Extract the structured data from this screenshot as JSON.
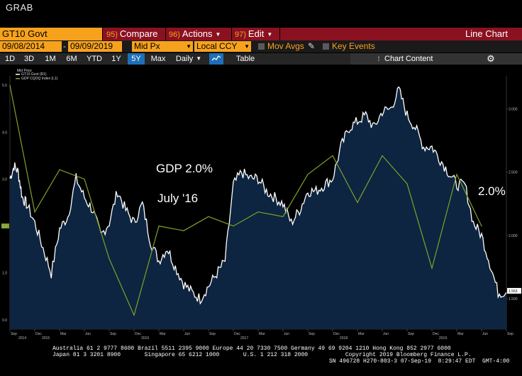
{
  "window": {
    "title": "GRAB"
  },
  "toolbar": {
    "ticker": "GT10 Govt",
    "compare": {
      "num": "95)",
      "label": "Compare"
    },
    "actions": {
      "num": "96)",
      "label": "Actions"
    },
    "edit": {
      "num": "97)",
      "label": "Edit"
    },
    "view_title": "Line Chart"
  },
  "options": {
    "start_date": "09/08/2014",
    "range_sep": "-",
    "end_date": "09/09/2019",
    "price_field": "Mid Px",
    "currency": "Local CCY",
    "mov_avgs": "Mov Avgs",
    "key_events": "Key Events"
  },
  "periods": [
    "1D",
    "3D",
    "1M",
    "6M",
    "YTD",
    "1Y",
    "5Y",
    "Max"
  ],
  "active_period": "5Y",
  "frequency": "Daily",
  "table_label": "Table",
  "chart_content_label": "Chart Content",
  "colors": {
    "orange": "#f7a21d",
    "bar_red": "#8a1120",
    "active_blue": "#1e6fb8",
    "area_fill": "#0d2540",
    "gdp_line": "#7fa12a",
    "yield_line": "#ffffff"
  },
  "chart_data": {
    "type": "area",
    "legend": {
      "header": "Mid Price",
      "items": [
        "GT10 Govt (R1)",
        "GDP CQOQ Index (L1)"
      ]
    },
    "left_axis": {
      "ticks": [
        "5.0",
        "4.0",
        "3.0",
        "2.0",
        "1.0",
        "0.0"
      ],
      "highlight": "2.0",
      "ylim": [
        -0.2,
        5.2
      ]
    },
    "right_axis": {
      "ticks": [
        "3.000",
        "2.500",
        "2.000",
        "1.500"
      ],
      "last_value": "1.563",
      "ylim": [
        1.26,
        3.26
      ]
    },
    "x_tick_labels": [
      "Sep",
      "Dec",
      "Mar",
      "Jun",
      "Sep",
      "Dec",
      "Mar",
      "Jun",
      "Sep",
      "Dec",
      "Mar",
      "Jun",
      "Sep",
      "Dec",
      "Mar",
      "Jun",
      "Sep",
      "Dec",
      "Mar",
      "Jun",
      "Sep"
    ],
    "year_labels": [
      "2014",
      "2015",
      "2016",
      "2017",
      "2018",
      "2019"
    ],
    "series": [
      {
        "name": "GT10 Govt (R1)",
        "axis": "right",
        "x": [
          0,
          0.5,
          1,
          1.5,
          2,
          3,
          4,
          5,
          6,
          7,
          8,
          9,
          10,
          11,
          12,
          13,
          14,
          15,
          16,
          17,
          18,
          19,
          20,
          21,
          22,
          23,
          24,
          25,
          26,
          27,
          28,
          29,
          30,
          31,
          32,
          33,
          34,
          35,
          36,
          37,
          38,
          39,
          40,
          41,
          42,
          43,
          44,
          45,
          46,
          47,
          48,
          49,
          50,
          51,
          52,
          53,
          54,
          55,
          56,
          57,
          58,
          59,
          60
        ],
        "values": [
          2.45,
          2.55,
          2.5,
          2.3,
          2.25,
          2.1,
          1.9,
          1.7,
          2.05,
          2.15,
          2.45,
          2.3,
          2.2,
          2.0,
          2.1,
          2.35,
          2.2,
          2.1,
          2.25,
          1.95,
          1.8,
          1.9,
          1.75,
          1.62,
          1.55,
          1.5,
          1.6,
          1.7,
          1.8,
          2.4,
          2.5,
          2.45,
          2.45,
          2.35,
          2.3,
          2.25,
          2.1,
          2.2,
          2.35,
          2.35,
          2.4,
          2.45,
          2.7,
          2.85,
          2.9,
          2.95,
          2.85,
          2.98,
          3.0,
          3.15,
          2.95,
          2.85,
          2.7,
          2.7,
          2.6,
          2.5,
          2.4,
          2.4,
          2.1,
          2.0,
          1.78,
          1.55,
          1.55
        ]
      },
      {
        "name": "GDP CQOQ Index (L1)",
        "axis": "left",
        "x": [
          0,
          3,
          6,
          9,
          12,
          15,
          18,
          21,
          24,
          27,
          30,
          33,
          36,
          39,
          42,
          45,
          48,
          51,
          54,
          57
        ],
        "values": [
          5.0,
          2.3,
          3.2,
          3.0,
          1.3,
          0.1,
          2.0,
          1.9,
          2.2,
          2.0,
          2.3,
          2.2,
          3.1,
          3.5,
          2.5,
          3.5,
          2.9,
          1.1,
          3.1,
          2.0
        ]
      }
    ],
    "annotations": [
      {
        "text": "GDP 2.0%"
      },
      {
        "text": "July '16"
      },
      {
        "text": "2.0%"
      }
    ]
  },
  "footer": {
    "line1": "Australia 61 2 9777 8600 Brazil 5511 2395 9000 Europe 44 20 7330 7500 Germany 49 69 9204 1210 Hong Kong 852 2977 6000",
    "line2": "Japan 81 3 3201 8900       Singapore 65 6212 1000       U.S. 1 212 318 2000           Copyright 2019 Bloomberg Finance L.P.",
    "line3": "SN 496728 H270-803-3 07-Sep-19  8:29:47 EDT  GMT-4:00"
  }
}
